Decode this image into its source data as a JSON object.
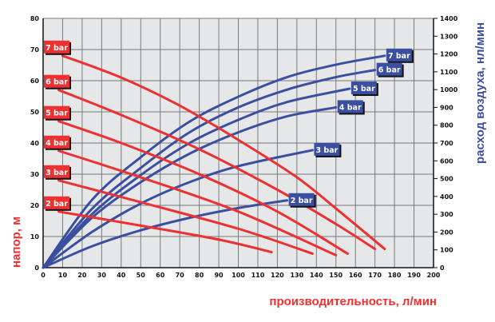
{
  "chart_data": {
    "type": "line",
    "xlabel": "производительность, л/мин",
    "ylabel": "напор, м",
    "y2label": "расход воздуха, нл/мин",
    "xlim": [
      0,
      200
    ],
    "ylim": [
      0,
      80
    ],
    "y2lim": [
      0,
      1400
    ],
    "xticks": [
      0,
      10,
      20,
      30,
      40,
      50,
      60,
      70,
      80,
      90,
      100,
      110,
      120,
      130,
      140,
      150,
      160,
      170,
      180,
      190,
      200
    ],
    "yticks": [
      0,
      10,
      20,
      30,
      40,
      50,
      60,
      70,
      80
    ],
    "y2ticks": [
      0,
      100,
      200,
      300,
      400,
      500,
      600,
      700,
      800,
      900,
      1000,
      1100,
      1200,
      1300,
      1400
    ],
    "grid": true,
    "colors": {
      "head": "#ee3030",
      "air": "#3a4fa0",
      "plot_bg": "#e6e7e9",
      "grid": "#7a7a7a"
    },
    "head_series": [
      {
        "name": "7 bar",
        "points": [
          [
            10,
            68
          ],
          [
            40,
            61
          ],
          [
            70,
            52
          ],
          [
            100,
            41
          ],
          [
            130,
            29
          ],
          [
            150,
            19
          ],
          [
            175,
            6
          ]
        ]
      },
      {
        "name": "6 bar",
        "points": [
          [
            8,
            57
          ],
          [
            40,
            49
          ],
          [
            80,
            38
          ],
          [
            120,
            25
          ],
          [
            150,
            14
          ],
          [
            170,
            6
          ]
        ]
      },
      {
        "name": "5 bar",
        "points": [
          [
            8,
            47
          ],
          [
            40,
            40
          ],
          [
            80,
            30
          ],
          [
            120,
            18
          ],
          [
            156,
            4.5
          ]
        ]
      },
      {
        "name": "4 bar",
        "points": [
          [
            8,
            37.5
          ],
          [
            50,
            29
          ],
          [
            100,
            18
          ],
          [
            150,
            4
          ]
        ]
      },
      {
        "name": "3 bar",
        "points": [
          [
            8,
            28
          ],
          [
            50,
            21
          ],
          [
            100,
            12.5
          ],
          [
            138,
            4.5
          ]
        ]
      },
      {
        "name": "2 bar",
        "points": [
          [
            8,
            18
          ],
          [
            50,
            13.5
          ],
          [
            90,
            9
          ],
          [
            117,
            5
          ]
        ]
      }
    ],
    "air_series": [
      {
        "name": "7 bar",
        "points": [
          [
            0,
            0
          ],
          [
            25,
            380
          ],
          [
            50,
            620
          ],
          [
            75,
            820
          ],
          [
            100,
            960
          ],
          [
            125,
            1070
          ],
          [
            150,
            1140
          ],
          [
            175,
            1190
          ]
        ]
      },
      {
        "name": "6 bar",
        "points": [
          [
            0,
            0
          ],
          [
            25,
            330
          ],
          [
            50,
            560
          ],
          [
            75,
            760
          ],
          [
            100,
            900
          ],
          [
            125,
            1000
          ],
          [
            150,
            1070
          ],
          [
            170,
            1110
          ]
        ]
      },
      {
        "name": "5 bar",
        "points": [
          [
            0,
            0
          ],
          [
            25,
            300
          ],
          [
            50,
            520
          ],
          [
            75,
            700
          ],
          [
            100,
            830
          ],
          [
            125,
            930
          ],
          [
            157,
            1005
          ]
        ]
      },
      {
        "name": "4 bar",
        "points": [
          [
            0,
            0
          ],
          [
            25,
            280
          ],
          [
            50,
            480
          ],
          [
            75,
            640
          ],
          [
            100,
            760
          ],
          [
            125,
            850
          ],
          [
            150,
            900
          ]
        ]
      },
      {
        "name": "3 bar",
        "points": [
          [
            0,
            0
          ],
          [
            25,
            200
          ],
          [
            50,
            360
          ],
          [
            75,
            480
          ],
          [
            100,
            570
          ],
          [
            138,
            660
          ]
        ]
      },
      {
        "name": "2 bar",
        "points": [
          [
            0,
            0
          ],
          [
            25,
            120
          ],
          [
            50,
            210
          ],
          [
            75,
            280
          ],
          [
            100,
            335
          ],
          [
            125,
            378
          ]
        ]
      }
    ]
  }
}
